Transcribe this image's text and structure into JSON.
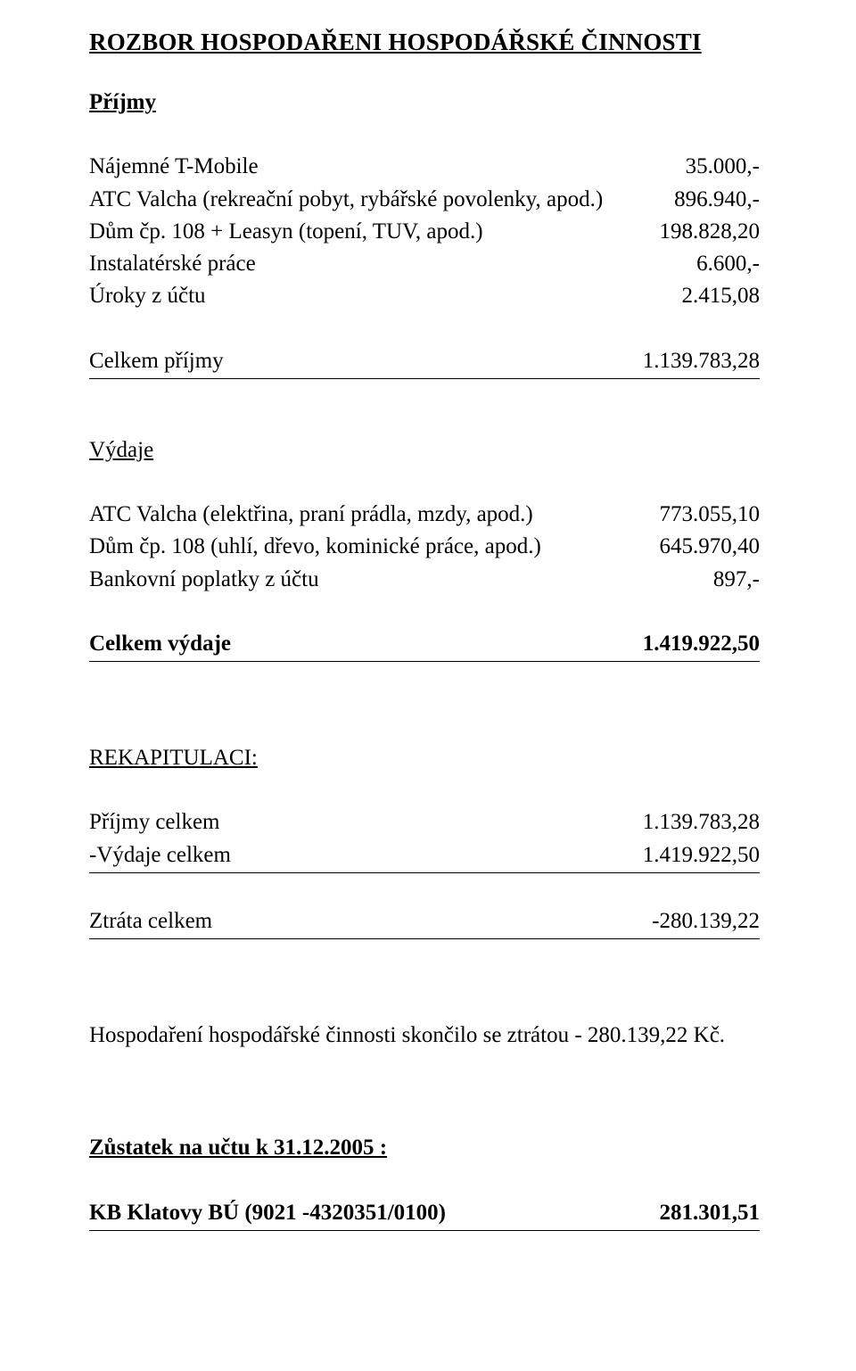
{
  "colors": {
    "text": "#000000",
    "background": "#ffffff"
  },
  "typography": {
    "font_family": "Times New Roman",
    "body_size_pt": 19,
    "title_size_pt": 20
  },
  "title": "ROZBOR HOSPODAŘENI HOSPODÁŘSKÉ ČINNOSTI",
  "prijmy": {
    "heading": "Příjmy",
    "items": [
      {
        "label": "Nájemné T-Mobile",
        "value": "35.000,-"
      },
      {
        "label": "ATC Valcha (rekreační pobyt, rybářské povolenky, apod.)",
        "value": "896.940,-"
      },
      {
        "label": "Dům čp. 108 + Leasyn (topení, TUV, apod.)",
        "value": "198.828,20"
      },
      {
        "label": "Instalatérské práce",
        "value": "6.600,-"
      },
      {
        "label": "Úroky z účtu",
        "value": "2.415,08"
      }
    ],
    "total_label": "Celkem příjmy",
    "total_value": "1.139.783,28"
  },
  "vydaje": {
    "heading": "Výdaje",
    "items": [
      {
        "label": "ATC Valcha (elektřina, praní prádla, mzdy, apod.)",
        "value": "773.055,10"
      },
      {
        "label": "Dům čp. 108 (uhlí, dřevo, kominické práce, apod.)",
        "value": "645.970,40"
      },
      {
        "label": "Bankovní poplatky z účtu",
        "value": "897,-"
      }
    ],
    "total_label": "Celkem výdaje",
    "total_value": "1.419.922,50"
  },
  "rekap": {
    "heading": "REKAPITULACI:",
    "items": [
      {
        "label": "Příjmy celkem",
        "value": "1.139.783,28"
      },
      {
        "label": "-Výdaje celkem",
        "value": "1.419.922,50"
      }
    ],
    "total_label": "Ztráta celkem",
    "total_value": "-280.139,22"
  },
  "note": "Hospodaření hospodářské činnosti skončilo se ztrátou - 280.139,22 Kč.",
  "balance": {
    "heading": "Zůstatek na učtu k 31.12.2005 :",
    "row_label": "KB Klatovy BÚ (9021 -4320351/0100)",
    "row_value": "281.301,51"
  }
}
